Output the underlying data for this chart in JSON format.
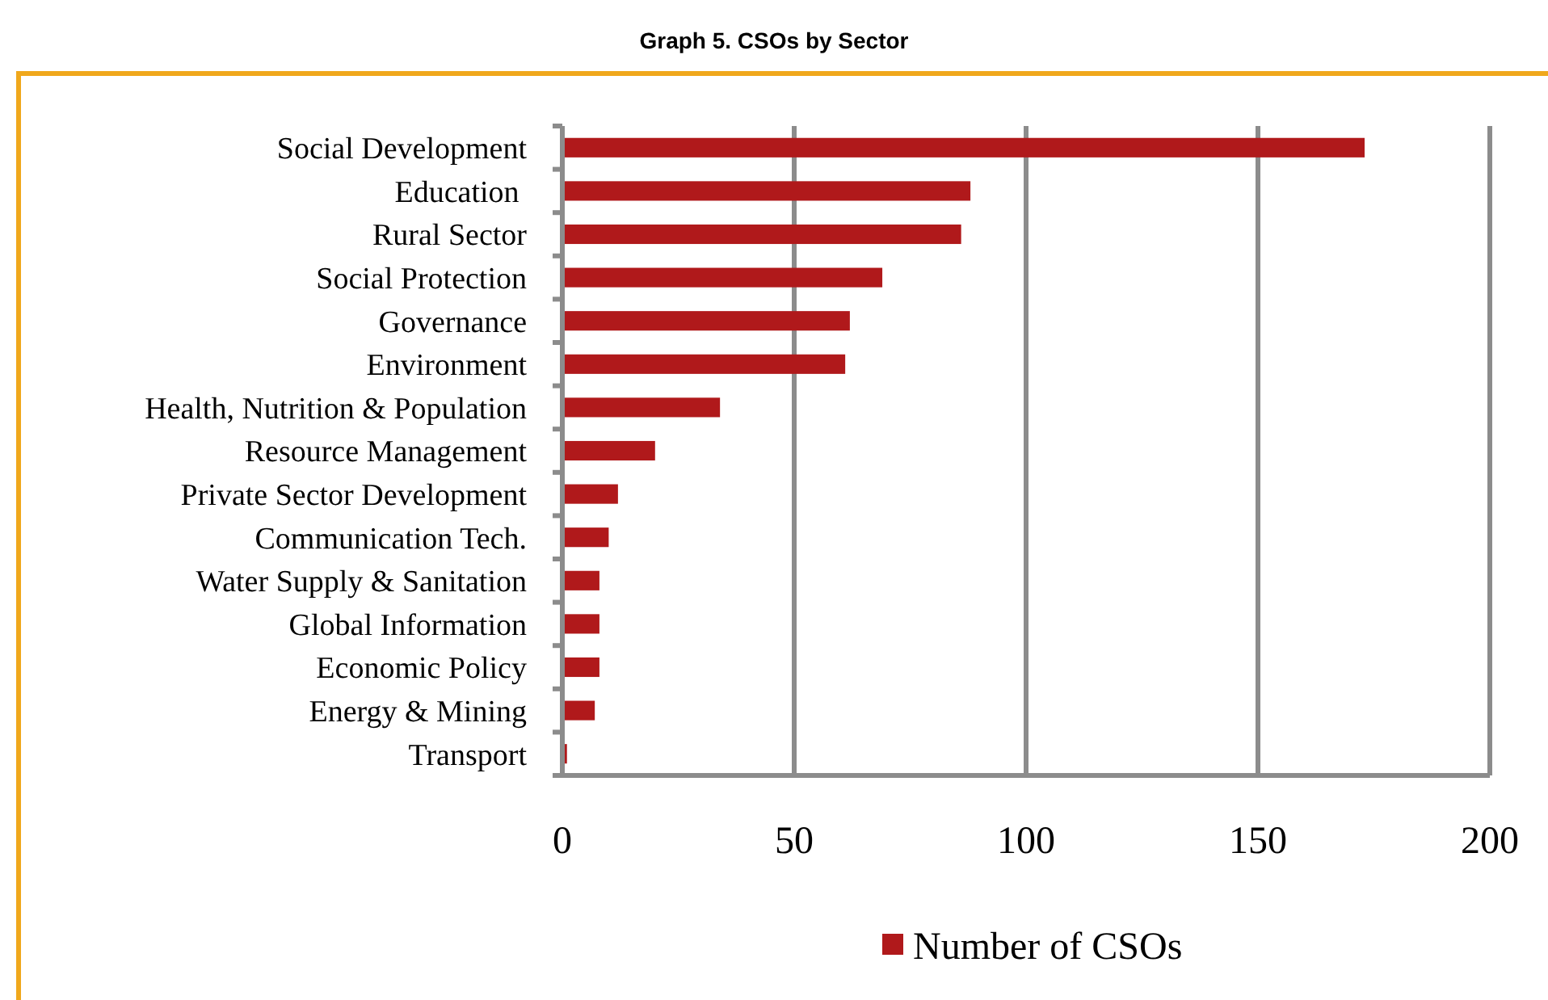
{
  "chart_data": {
    "type": "bar",
    "orientation": "horizontal",
    "title": "Graph 5. CSOs by Sector",
    "categories": [
      "Social Development",
      "Education ",
      "Rural Sector",
      "Social Protection",
      "Governance",
      "Environment",
      "Health, Nutrition & Population",
      "Resource Management",
      "Private Sector Development",
      "Communication Tech.",
      "Water Supply & Sanitation",
      "Global Information",
      "Economic Policy",
      "Energy & Mining",
      "Transport"
    ],
    "series": [
      {
        "name": "Number of CSOs",
        "color": "#b0191b",
        "values": [
          173,
          88,
          86,
          69,
          62,
          61,
          34,
          20,
          12,
          10,
          8,
          8,
          8,
          7,
          1
        ]
      }
    ],
    "xlim": [
      0,
      200
    ],
    "xticks": [
      0,
      50,
      100,
      150,
      200
    ],
    "grid": "x",
    "legend": "bottom"
  }
}
